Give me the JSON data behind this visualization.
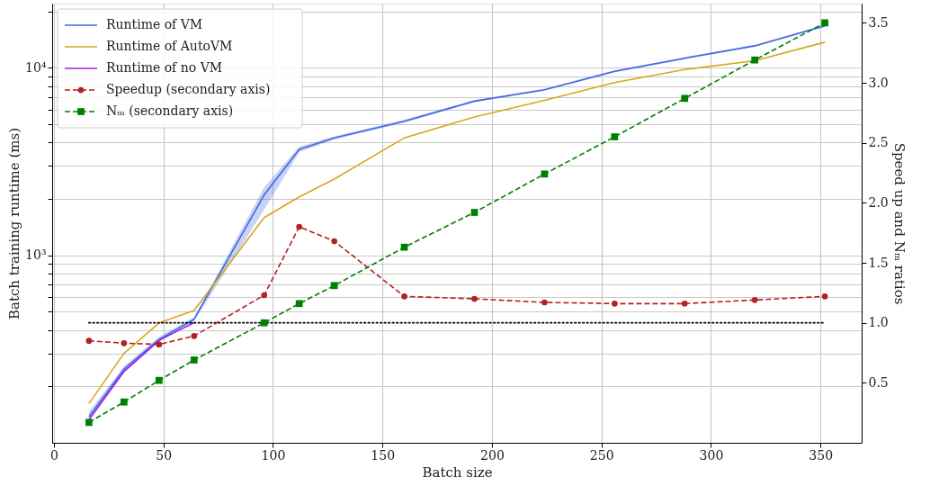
{
  "chart_data": {
    "type": "line",
    "xlabel": "Batch size",
    "ylabel": "Batch training runtime (ms)",
    "y2label": "Speed up and Nₘ ratios",
    "x": [
      16,
      32,
      48,
      64,
      96,
      112,
      128,
      160,
      192,
      224,
      256,
      288,
      320,
      352
    ],
    "xlim": [
      -0.8,
      368.8
    ],
    "xticks": [
      0,
      50,
      100,
      150,
      200,
      250,
      300,
      350
    ],
    "log": "y",
    "ylim": [
      100,
      22000
    ],
    "yticks": [
      {
        "value": 200,
        "label": null
      },
      {
        "value": 300,
        "label": null
      },
      {
        "value": 400,
        "label": null
      },
      {
        "value": 500,
        "label": null
      },
      {
        "value": 600,
        "label": null
      },
      {
        "value": 700,
        "label": null
      },
      {
        "value": 800,
        "label": null
      },
      {
        "value": 900,
        "label": null
      },
      {
        "value": 1000,
        "label": "10³"
      },
      {
        "value": 2000,
        "label": null
      },
      {
        "value": 3000,
        "label": null
      },
      {
        "value": 4000,
        "label": null
      },
      {
        "value": 5000,
        "label": null
      },
      {
        "value": 6000,
        "label": null
      },
      {
        "value": 7000,
        "label": null
      },
      {
        "value": 8000,
        "label": null
      },
      {
        "value": 9000,
        "label": null
      },
      {
        "value": 10000,
        "label": "10⁴"
      },
      {
        "value": 20000,
        "label": null
      }
    ],
    "y2lim": [
      0,
      3.66
    ],
    "y2ticks": [
      0.5,
      {
        "value": 1,
        "label": "1.0"
      },
      1.5,
      {
        "value": 2,
        "label": "2.0"
      },
      2.5,
      {
        "value": 3,
        "label": "3.0"
      },
      3.5
    ],
    "grid": true,
    "legend": "top left",
    "series": [
      {
        "name": "Runtime of VM",
        "color": "#4169e1",
        "marker": "none",
        "line_style": "solid",
        "values": [
          138,
          247,
          356,
          456,
          2100,
          3670,
          4230,
          5190,
          6640,
          7640,
          9570,
          11250,
          13100,
          16750
        ],
        "lower": [
          130,
          238,
          345,
          445,
          1750,
          3550,
          4150,
          5100,
          6550,
          7550,
          9450,
          11100,
          12950,
          16550
        ],
        "upper": [
          146,
          256,
          367,
          467,
          2300,
          3800,
          4310,
          5280,
          6730,
          7730,
          9700,
          11400,
          13250,
          16950
        ]
      },
      {
        "name": "Runtime of AutoVM",
        "color": "#daa520",
        "marker": "none",
        "line_style": "solid",
        "values": [
          162,
          300,
          436,
          508,
          1590,
          2050,
          2550,
          4230,
          5470,
          6710,
          8340,
          9800,
          10900,
          13700
        ]
      },
      {
        "name": "Runtime of no VM",
        "color": "#a020f0",
        "marker": "none",
        "line_style": "solid",
        "x": [
          16,
          32,
          48,
          64
        ],
        "values": [
          133,
          240,
          352,
          437
        ]
      },
      {
        "name": "Speedup (secondary axis)",
        "color": "#b22222",
        "marker": "circle",
        "line_style": "dashed",
        "axis": "y2",
        "values": [
          0.85,
          0.83,
          0.82,
          0.89,
          1.23,
          1.8,
          1.68,
          1.22,
          1.2,
          1.17,
          1.16,
          1.16,
          1.19,
          1.22
        ]
      },
      {
        "name": "Nₘ (secondary axis)",
        "color": "#008000",
        "marker": "square",
        "line_style": "dashed",
        "axis": "y2",
        "values": [
          0.17,
          0.34,
          0.52,
          0.69,
          1.0,
          1.16,
          1.31,
          1.63,
          1.92,
          2.24,
          2.55,
          2.87,
          3.19,
          3.5
        ]
      }
    ],
    "ref_lines": [
      {
        "axis": "y2",
        "value": 1,
        "color": "#000000",
        "line_style": "dotted"
      }
    ]
  }
}
